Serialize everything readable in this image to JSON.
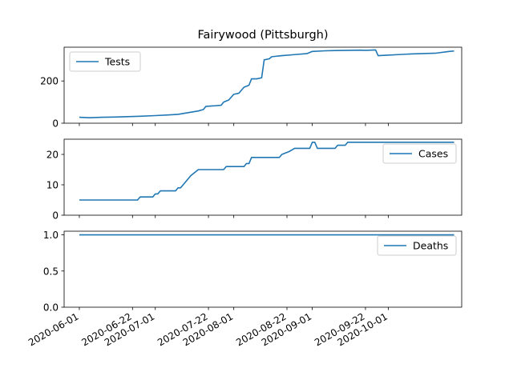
{
  "chart_data": {
    "title": "Fairywood (Pittsburgh)",
    "type": "line",
    "x_type": "date",
    "x_ticks": [
      "2020-06-01",
      "2020-06-22",
      "2020-07-01",
      "2020-07-22",
      "2020-08-01",
      "2020-08-22",
      "2020-09-01",
      "2020-09-22",
      "2020-10-01"
    ],
    "xlim": [
      "2020-05-26",
      "2020-10-30"
    ],
    "color": "#1f77b4",
    "grid": false,
    "panels": [
      {
        "name": "Tests",
        "legend_position": "upper left",
        "ylim": [
          0,
          360
        ],
        "yticks": [
          0,
          200
        ],
        "series": {
          "name": "Tests",
          "points": [
            [
              "2020-06-01",
              28
            ],
            [
              "2020-06-05",
              26
            ],
            [
              "2020-06-10",
              28
            ],
            [
              "2020-06-15",
              29
            ],
            [
              "2020-06-20",
              31
            ],
            [
              "2020-06-25",
              33
            ],
            [
              "2020-07-01",
              36
            ],
            [
              "2020-07-06",
              39
            ],
            [
              "2020-07-10",
              42
            ],
            [
              "2020-07-14",
              50
            ],
            [
              "2020-07-18",
              58
            ],
            [
              "2020-07-20",
              65
            ],
            [
              "2020-07-21",
              80
            ],
            [
              "2020-07-24",
              82
            ],
            [
              "2020-07-27",
              85
            ],
            [
              "2020-07-28",
              100
            ],
            [
              "2020-07-30",
              110
            ],
            [
              "2020-08-01",
              137
            ],
            [
              "2020-08-03",
              142
            ],
            [
              "2020-08-05",
              170
            ],
            [
              "2020-08-07",
              180
            ],
            [
              "2020-08-08",
              210
            ],
            [
              "2020-08-10",
              210
            ],
            [
              "2020-08-12",
              215
            ],
            [
              "2020-08-13",
              300
            ],
            [
              "2020-08-15",
              305
            ],
            [
              "2020-08-16",
              315
            ],
            [
              "2020-08-20",
              320
            ],
            [
              "2020-08-25",
              325
            ],
            [
              "2020-08-30",
              330
            ],
            [
              "2020-09-01",
              340
            ],
            [
              "2020-09-06",
              343
            ],
            [
              "2020-09-10",
              344
            ],
            [
              "2020-09-15",
              345
            ],
            [
              "2020-09-20",
              346
            ],
            [
              "2020-09-22",
              345
            ],
            [
              "2020-09-26",
              347
            ],
            [
              "2020-09-27",
              320
            ],
            [
              "2020-09-30",
              322
            ],
            [
              "2020-10-05",
              325
            ],
            [
              "2020-10-10",
              328
            ],
            [
              "2020-10-15",
              330
            ],
            [
              "2020-10-20",
              332
            ],
            [
              "2020-10-25",
              340
            ],
            [
              "2020-10-27",
              342
            ]
          ]
        }
      },
      {
        "name": "Cases",
        "legend_position": "upper right",
        "ylim": [
          0,
          25
        ],
        "yticks": [
          0,
          10,
          20
        ],
        "series": {
          "name": "Cases",
          "points": [
            [
              "2020-06-01",
              5
            ],
            [
              "2020-06-24",
              5
            ],
            [
              "2020-06-25",
              6
            ],
            [
              "2020-06-30",
              6
            ],
            [
              "2020-07-01",
              7
            ],
            [
              "2020-07-02",
              7
            ],
            [
              "2020-07-03",
              8
            ],
            [
              "2020-07-09",
              8
            ],
            [
              "2020-07-10",
              9
            ],
            [
              "2020-07-11",
              9
            ],
            [
              "2020-07-13",
              11
            ],
            [
              "2020-07-15",
              13
            ],
            [
              "2020-07-18",
              15
            ],
            [
              "2020-07-28",
              15
            ],
            [
              "2020-07-29",
              16
            ],
            [
              "2020-08-05",
              16
            ],
            [
              "2020-08-06",
              17
            ],
            [
              "2020-08-07",
              17
            ],
            [
              "2020-08-08",
              19
            ],
            [
              "2020-08-19",
              19
            ],
            [
              "2020-08-20",
              20
            ],
            [
              "2020-08-23",
              21
            ],
            [
              "2020-08-25",
              22
            ],
            [
              "2020-08-31",
              22
            ],
            [
              "2020-09-01",
              24
            ],
            [
              "2020-09-02",
              24
            ],
            [
              "2020-09-03",
              22
            ],
            [
              "2020-09-10",
              22
            ],
            [
              "2020-09-11",
              23
            ],
            [
              "2020-09-14",
              23
            ],
            [
              "2020-09-15",
              24
            ],
            [
              "2020-10-27",
              24
            ]
          ]
        }
      },
      {
        "name": "Deaths",
        "legend_position": "upper right",
        "ylim": [
          0,
          1.05
        ],
        "yticks": [
          0.0,
          0.5,
          1.0
        ],
        "ytick_labels": [
          "0.0",
          "0.5",
          "1.0"
        ],
        "series": {
          "name": "Deaths",
          "points": [
            [
              "2020-06-01",
              1
            ],
            [
              "2020-10-27",
              1
            ]
          ]
        }
      }
    ]
  }
}
